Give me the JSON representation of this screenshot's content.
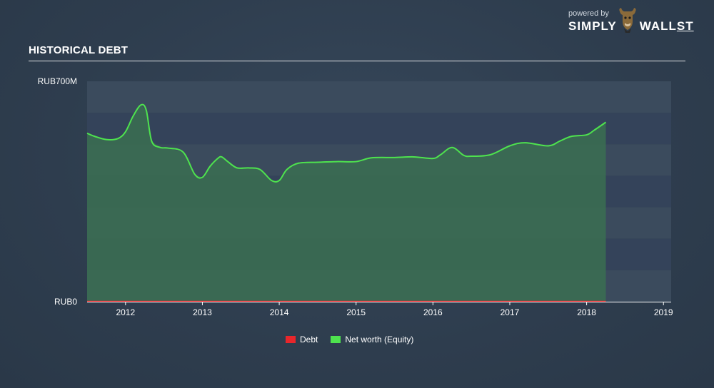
{
  "header": {
    "title": "HISTORICAL DEBT"
  },
  "brand": {
    "powered": "powered by",
    "name_left": "SIMPLY",
    "name_right": "WALL",
    "name_st": "ST"
  },
  "chart_data": {
    "type": "area",
    "title": "HISTORICAL DEBT",
    "xlabel": "",
    "ylabel": "",
    "x_ticks": [
      "2012",
      "2013",
      "2014",
      "2015",
      "2016",
      "2017",
      "2018",
      "2019"
    ],
    "y_ticks": [
      "RUB0",
      "RUB700M"
    ],
    "xlim": [
      2011.5,
      2019.1
    ],
    "ylim": [
      0,
      700
    ],
    "grid": true,
    "legend_position": "bottom",
    "series": [
      {
        "name": "Debt",
        "color": "#e8262b",
        "x": [
          2011.5,
          2018.25
        ],
        "y": [
          0,
          0
        ]
      },
      {
        "name": "Net worth (Equity)",
        "color": "#4ee34e",
        "x": [
          2011.5,
          2011.6,
          2011.75,
          2011.9,
          2012.0,
          2012.1,
          2012.2,
          2012.27,
          2012.34,
          2012.45,
          2012.55,
          2012.75,
          2012.9,
          2013.0,
          2013.1,
          2013.2,
          2013.25,
          2013.33,
          2013.45,
          2013.6,
          2013.75,
          2013.9,
          2014.0,
          2014.1,
          2014.25,
          2014.5,
          2014.75,
          2015.0,
          2015.2,
          2015.5,
          2015.75,
          2016.0,
          2016.1,
          2016.25,
          2016.4,
          2016.5,
          2016.75,
          2017.0,
          2017.2,
          2017.5,
          2017.65,
          2017.8,
          2018.0,
          2018.1,
          2018.25
        ],
        "y": [
          535,
          525,
          515,
          518,
          540,
          590,
          625,
          608,
          510,
          490,
          488,
          475,
          405,
          395,
          430,
          455,
          460,
          445,
          425,
          425,
          420,
          385,
          385,
          420,
          440,
          443,
          445,
          445,
          457,
          458,
          460,
          455,
          467,
          490,
          465,
          462,
          467,
          495,
          505,
          495,
          510,
          525,
          530,
          545,
          570
        ]
      }
    ]
  },
  "legend": {
    "items": [
      {
        "label": "Debt",
        "color": "#e8262b"
      },
      {
        "label": "Net worth (Equity)",
        "color": "#4ee34e"
      }
    ]
  }
}
